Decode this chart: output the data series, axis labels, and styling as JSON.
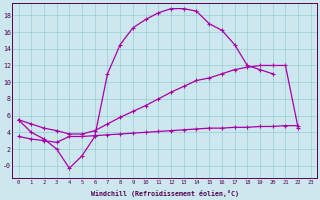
{
  "xlabel": "Windchill (Refroidissement éolien,°C)",
  "background_color": "#cce8ee",
  "grid_color": "#99ccd4",
  "line_color": "#aa00aa",
  "x": [
    0,
    1,
    2,
    3,
    4,
    5,
    6,
    7,
    8,
    9,
    10,
    11,
    12,
    13,
    14,
    15,
    16,
    17,
    18,
    19,
    20,
    21,
    22,
    23
  ],
  "arch": [
    5.5,
    4.0,
    3.2,
    2.0,
    -0.3,
    1.2,
    3.5,
    11.0,
    14.5,
    16.5,
    17.5,
    18.3,
    18.8,
    18.8,
    18.5,
    17.0,
    16.2,
    14.5,
    12.0,
    11.5,
    11.0,
    null,
    null,
    null
  ],
  "diag": [
    5.5,
    5.0,
    4.5,
    4.2,
    3.8,
    3.8,
    4.2,
    5.0,
    5.8,
    6.5,
    7.2,
    8.0,
    8.8,
    9.5,
    10.2,
    10.5,
    11.0,
    11.5,
    11.8,
    12.0,
    12.0,
    12.0,
    4.5,
    null
  ],
  "flat": [
    3.5,
    3.2,
    3.0,
    2.8,
    3.5,
    3.5,
    3.6,
    3.7,
    3.8,
    3.9,
    4.0,
    4.1,
    4.2,
    4.3,
    4.4,
    4.5,
    4.5,
    4.6,
    4.6,
    4.7,
    4.7,
    4.8,
    4.8,
    null
  ],
  "yticks": [
    0,
    2,
    4,
    6,
    8,
    10,
    12,
    14,
    16,
    18
  ],
  "ytick_labels": [
    "-0",
    "2",
    "4",
    "6",
    "8",
    "10",
    "12",
    "14",
    "16",
    "18"
  ],
  "ylim_min": -1.5,
  "ylim_max": 19.5,
  "xlim_min": -0.5,
  "xlim_max": 23.5
}
